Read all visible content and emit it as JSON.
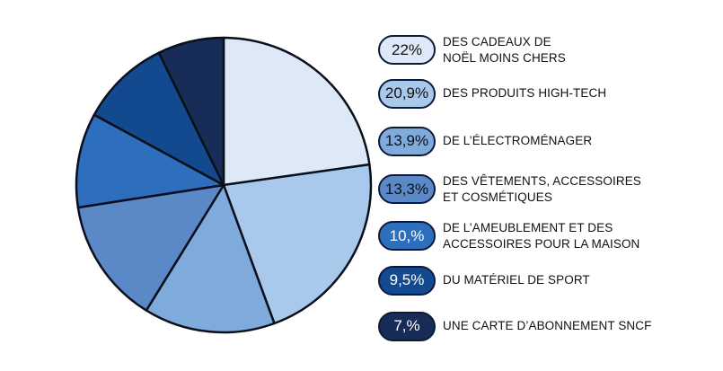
{
  "chart_data": {
    "type": "pie",
    "start": "12 o'clock",
    "direction": "clockwise",
    "slices": [
      {
        "value": 22,
        "display": "22%",
        "label_lines": [
          "DES CADEAUX DE",
          "NOËL MOINS CHERS"
        ],
        "color": "#dde9f7",
        "text_color": "#111111"
      },
      {
        "value": 20.9,
        "display": "20,9%",
        "label_lines": [
          "DES PRODUITS HIGH-TECH"
        ],
        "color": "#a8c8ec",
        "text_color": "#111111"
      },
      {
        "value": 13.9,
        "display": "13,9%",
        "label_lines": [
          "DE L’ÉLECTROMÉNAGER"
        ],
        "color": "#7eaadc",
        "text_color": "#111111"
      },
      {
        "value": 13.3,
        "display": "13,3%",
        "label_lines": [
          "DES VÊTEMENTS, ACCESSOIRES",
          "ET COSMÉTIQUES"
        ],
        "color": "#5b88c6",
        "text_color": "#111111"
      },
      {
        "value": 10,
        "display": "10,%",
        "label_lines": [
          "DE L’AMEUBLEMENT ET DES",
          "ACCESSOIRES POUR LA MAISON"
        ],
        "color": "#2d6fbc",
        "text_color": "#ffffff"
      },
      {
        "value": 9.5,
        "display": "9,5%",
        "label_lines": [
          "DU MATÉRIEL DE SPORT"
        ],
        "color": "#134a8f",
        "text_color": "#ffffff"
      },
      {
        "value": 7,
        "display": "7,%",
        "label_lines": [
          "UNE CARTE D’ABONNEMENT SNCF"
        ],
        "color": "#172c57",
        "text_color": "#ffffff"
      }
    ]
  }
}
